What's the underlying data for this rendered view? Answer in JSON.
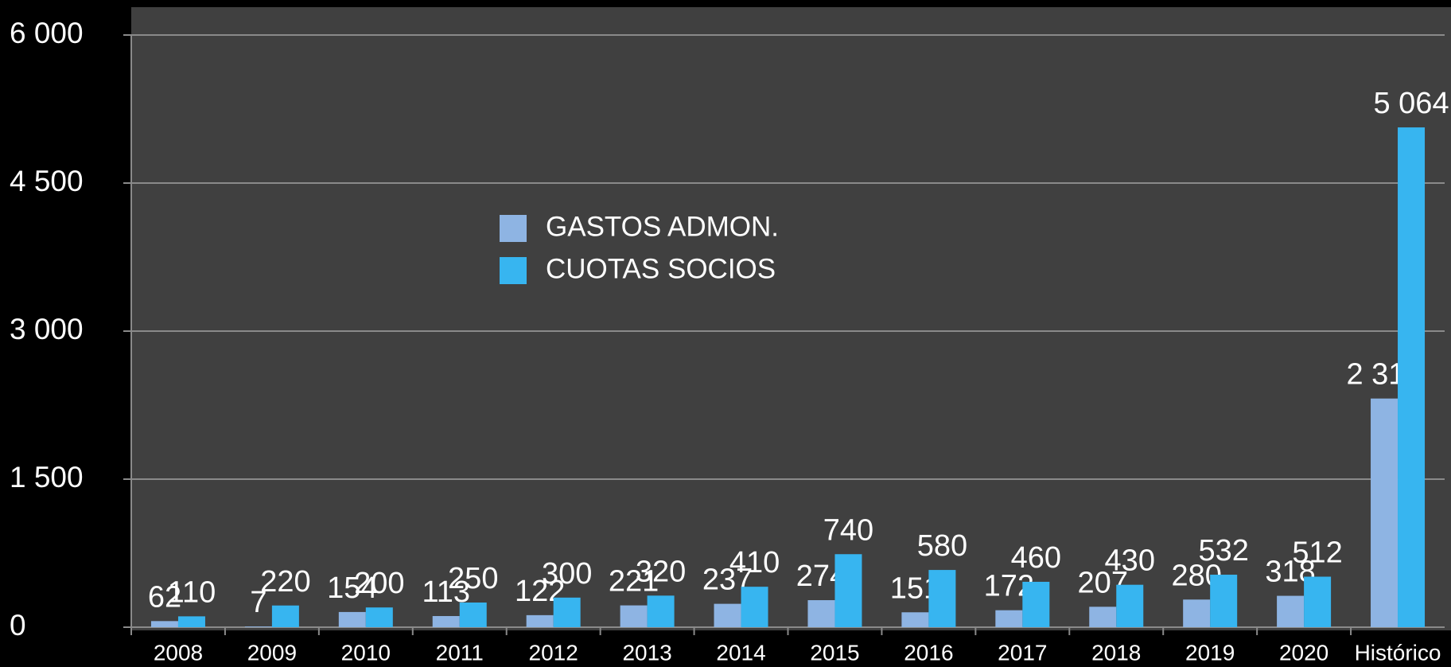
{
  "chart_data": {
    "type": "bar",
    "categories": [
      "2008",
      "2009",
      "2010",
      "2011",
      "2012",
      "2013",
      "2014",
      "2015",
      "2016",
      "2017",
      "2018",
      "2019",
      "2020",
      "Histórico"
    ],
    "series": [
      {
        "name": "GASTOS ADMON.",
        "color": "#8eb4e3",
        "values": [
          62,
          7,
          154,
          113,
          122,
          221,
          237,
          274,
          151,
          172,
          207,
          280,
          318,
          2317
        ],
        "value_labels": [
          "62",
          "7",
          "154",
          "113",
          "122",
          "221",
          "237",
          "274",
          "151",
          "172",
          "207",
          "280",
          "318",
          "2 317"
        ]
      },
      {
        "name": "CUOTAS SOCIOS",
        "color": "#37b5f0",
        "values": [
          110,
          220,
          200,
          250,
          300,
          320,
          410,
          740,
          580,
          460,
          430,
          532,
          512,
          5064
        ],
        "value_labels": [
          "110",
          "220",
          "200",
          "250",
          "300",
          "320",
          "410",
          "740",
          "580",
          "460",
          "430",
          "532",
          "512",
          "5 064"
        ]
      }
    ],
    "ylim": [
      0,
      6000
    ],
    "yticks": [
      0,
      {
        "value": 1500,
        "label": "1 500"
      },
      {
        "value": 3000,
        "label": "3 000"
      },
      {
        "value": 4500,
        "label": "4 500"
      },
      {
        "value": 6000,
        "label": "6 000"
      }
    ],
    "grid": true
  }
}
